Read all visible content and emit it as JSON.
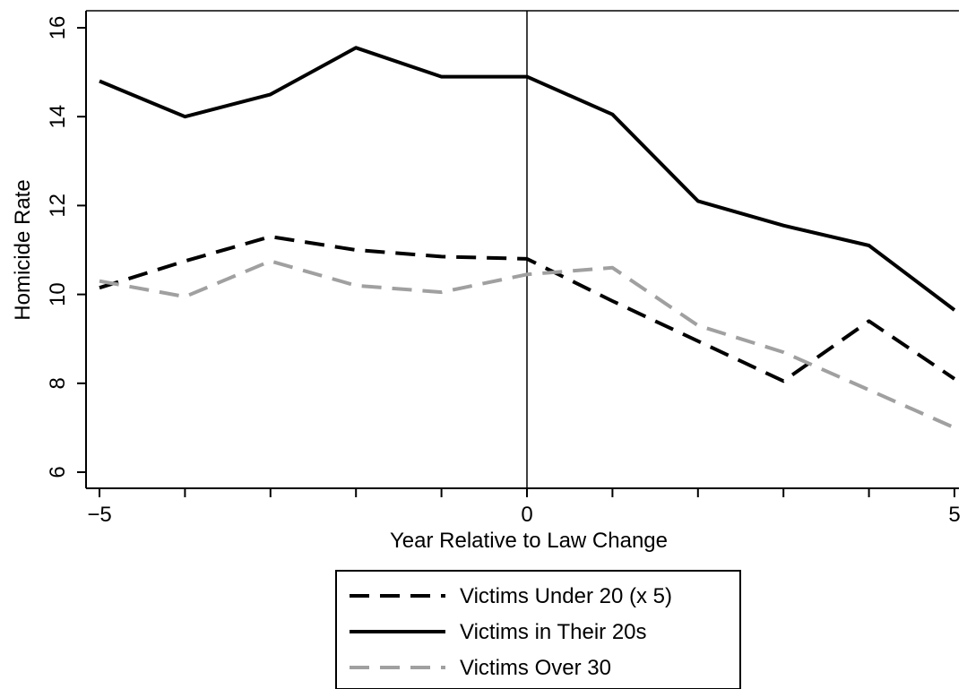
{
  "chart_data": {
    "type": "line",
    "title": "",
    "xlabel": "Year Relative to Law Change",
    "ylabel": "Homicide Rate",
    "x": [
      -5,
      -4,
      -3,
      -2,
      -1,
      0,
      1,
      2,
      3,
      4,
      5
    ],
    "xlim": [
      -5,
      5
    ],
    "ylim": [
      6,
      16
    ],
    "xticks": [
      -5,
      -4,
      -3,
      -2,
      -1,
      0,
      1,
      2,
      3,
      4,
      5
    ],
    "xtick_labels": [
      "−5",
      "",
      "",
      "",
      "",
      "0",
      "",
      "",
      "",
      "",
      "5"
    ],
    "yticks": [
      6,
      8,
      10,
      12,
      14,
      16
    ],
    "ytick_labels": [
      "6",
      "8",
      "10",
      "12",
      "14",
      "16"
    ],
    "reference_line_x": 0,
    "grid": false,
    "legend_position": "bottom",
    "series": [
      {
        "name": "Victims Under 20 (x 5)",
        "color": "#000000",
        "style": "dashed",
        "values": [
          10.15,
          10.75,
          11.3,
          11.0,
          10.85,
          10.8,
          9.85,
          8.95,
          8.05,
          9.4,
          8.1
        ]
      },
      {
        "name": "Victims in Their 20s",
        "color": "#000000",
        "style": "solid",
        "values": [
          14.8,
          14.0,
          14.5,
          15.55,
          14.9,
          14.9,
          14.05,
          12.1,
          11.55,
          11.1,
          9.65
        ]
      },
      {
        "name": "Victims Over 30",
        "color": "#a0a0a0",
        "style": "dashed",
        "values": [
          10.3,
          9.95,
          10.75,
          10.2,
          10.05,
          10.45,
          10.6,
          9.3,
          8.7,
          7.85,
          7.0
        ]
      }
    ]
  }
}
